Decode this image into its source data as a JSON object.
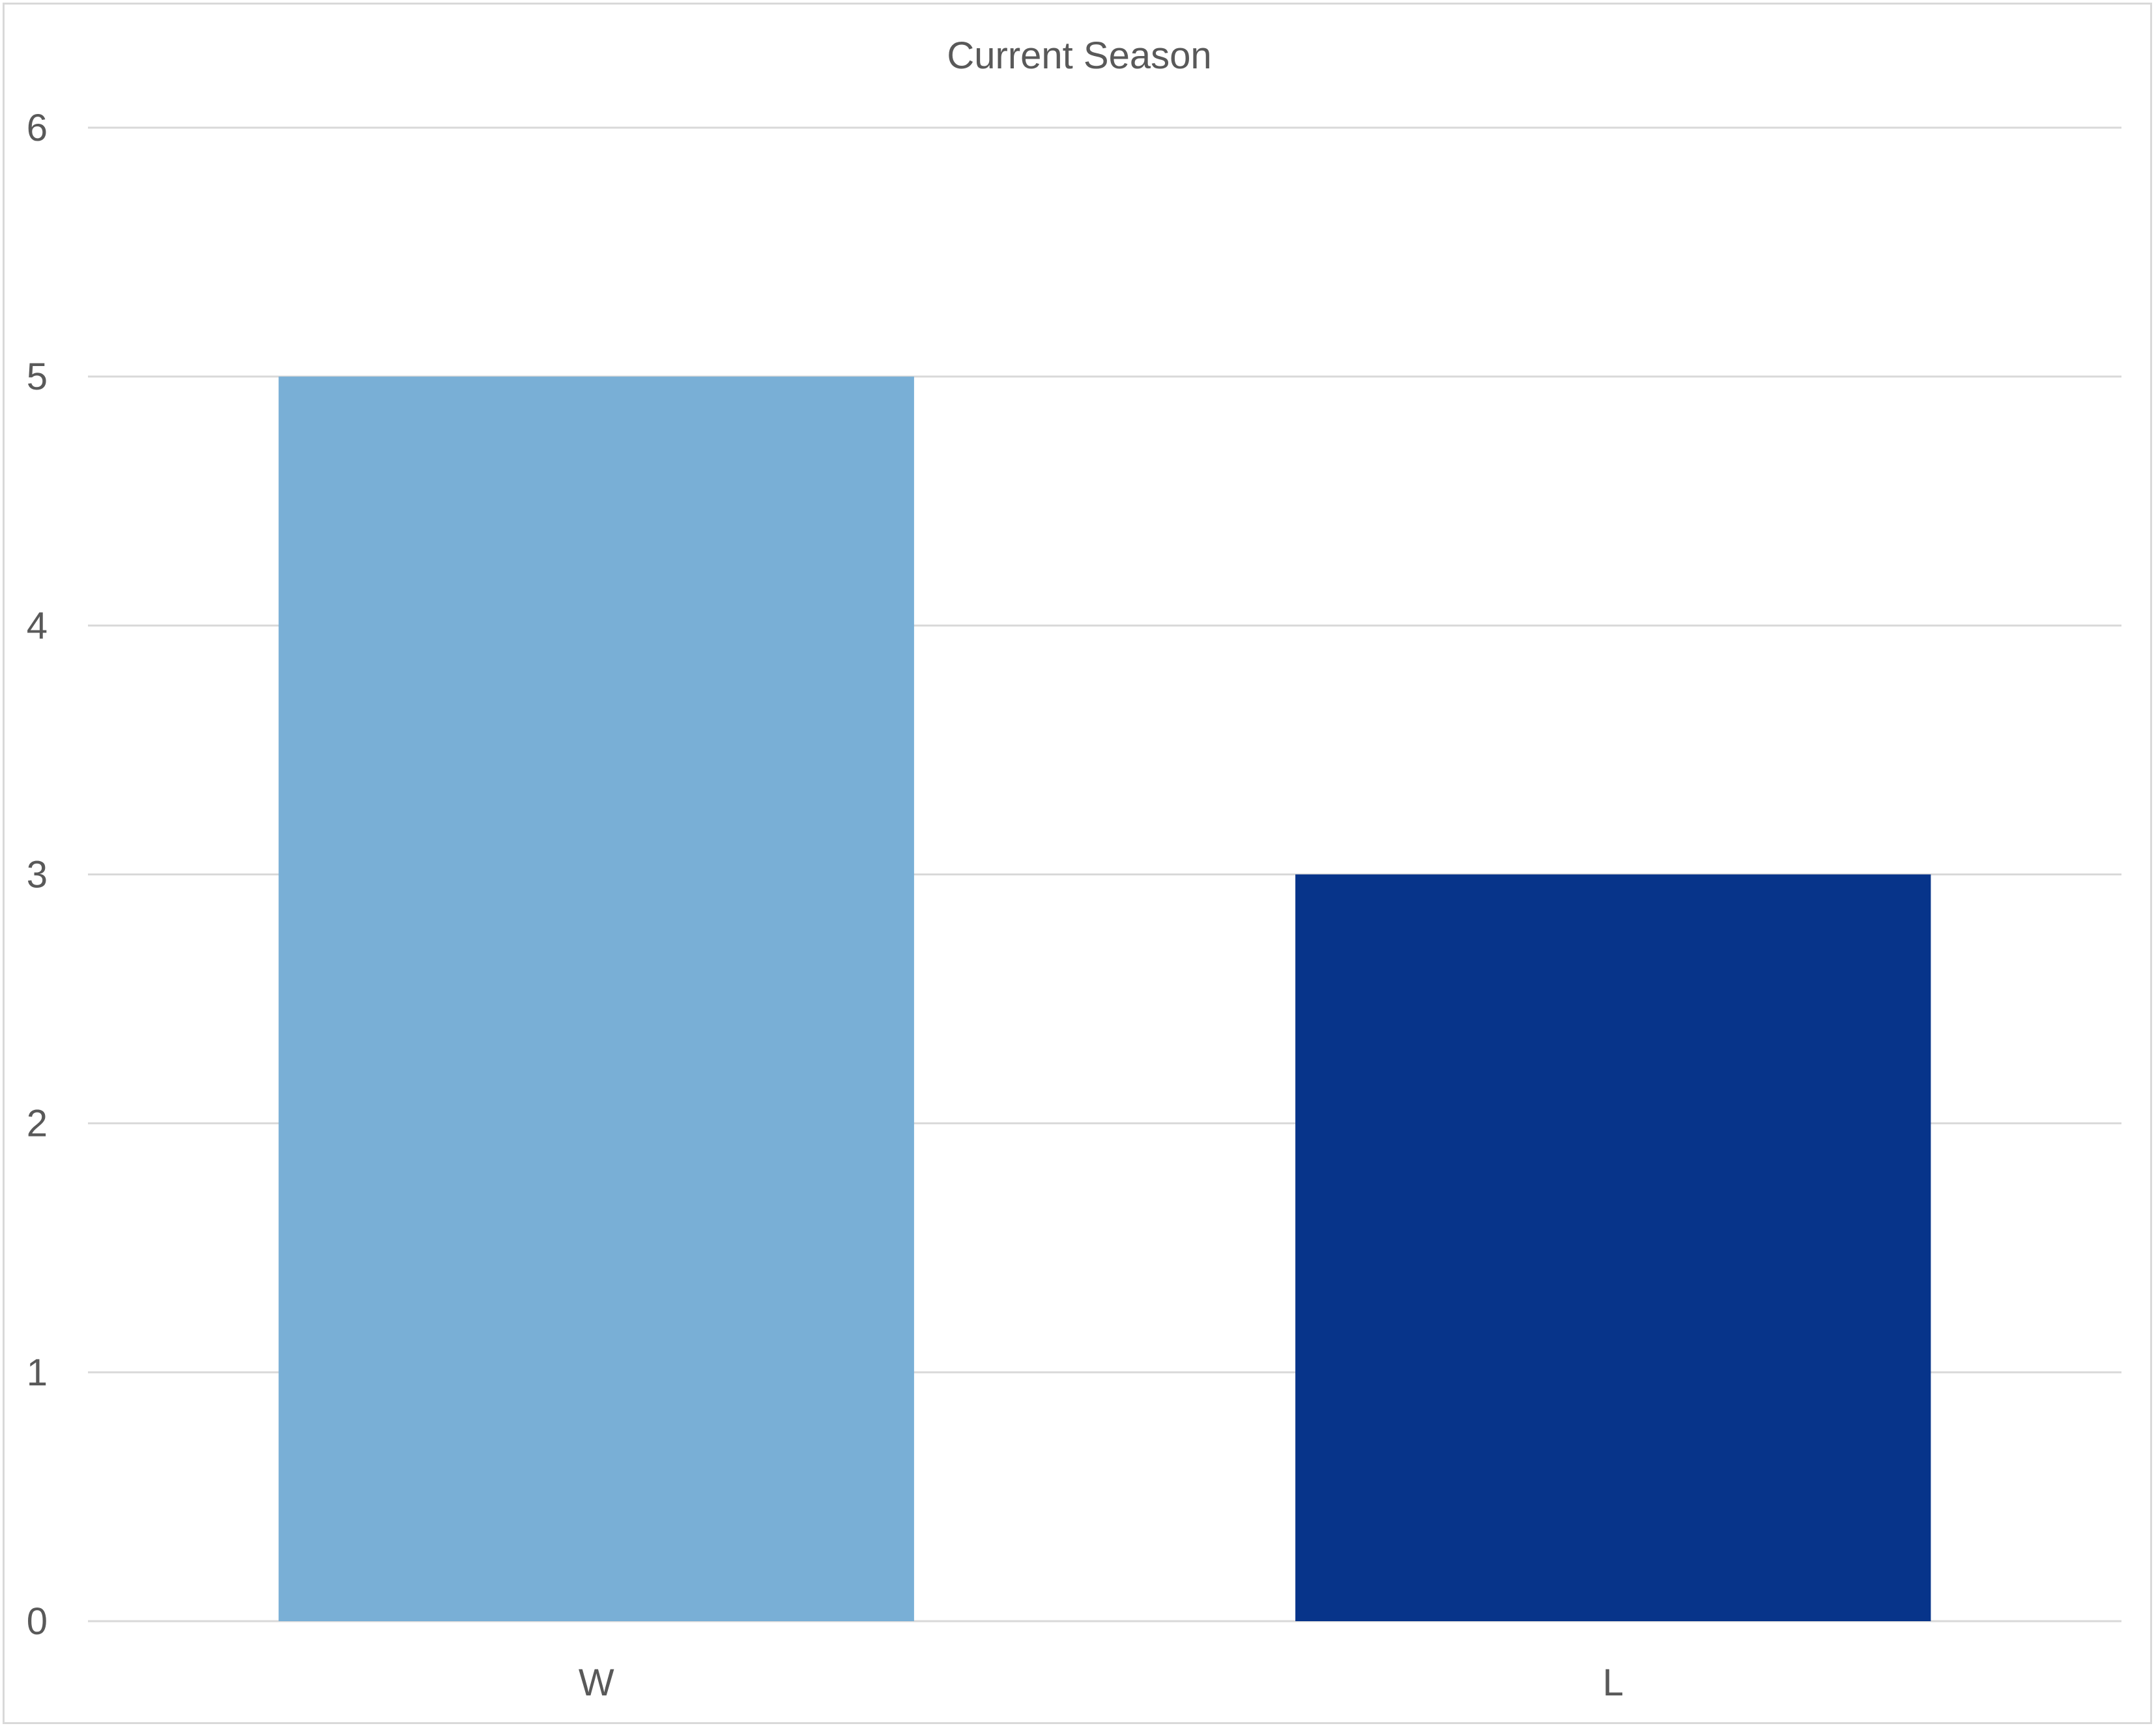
{
  "chart_data": {
    "type": "bar",
    "title": "Current Season",
    "categories": [
      "W",
      "L"
    ],
    "values": [
      5,
      3
    ],
    "bar_colors": [
      "#79AFD6",
      "#07348A"
    ],
    "xlabel": "",
    "ylabel": "",
    "ylim": [
      0,
      6
    ],
    "yticks": [
      "0",
      "1",
      "2",
      "3",
      "4",
      "5",
      "6"
    ],
    "grid": true,
    "gridline_color": "#d9d9d9",
    "legend": "none"
  }
}
